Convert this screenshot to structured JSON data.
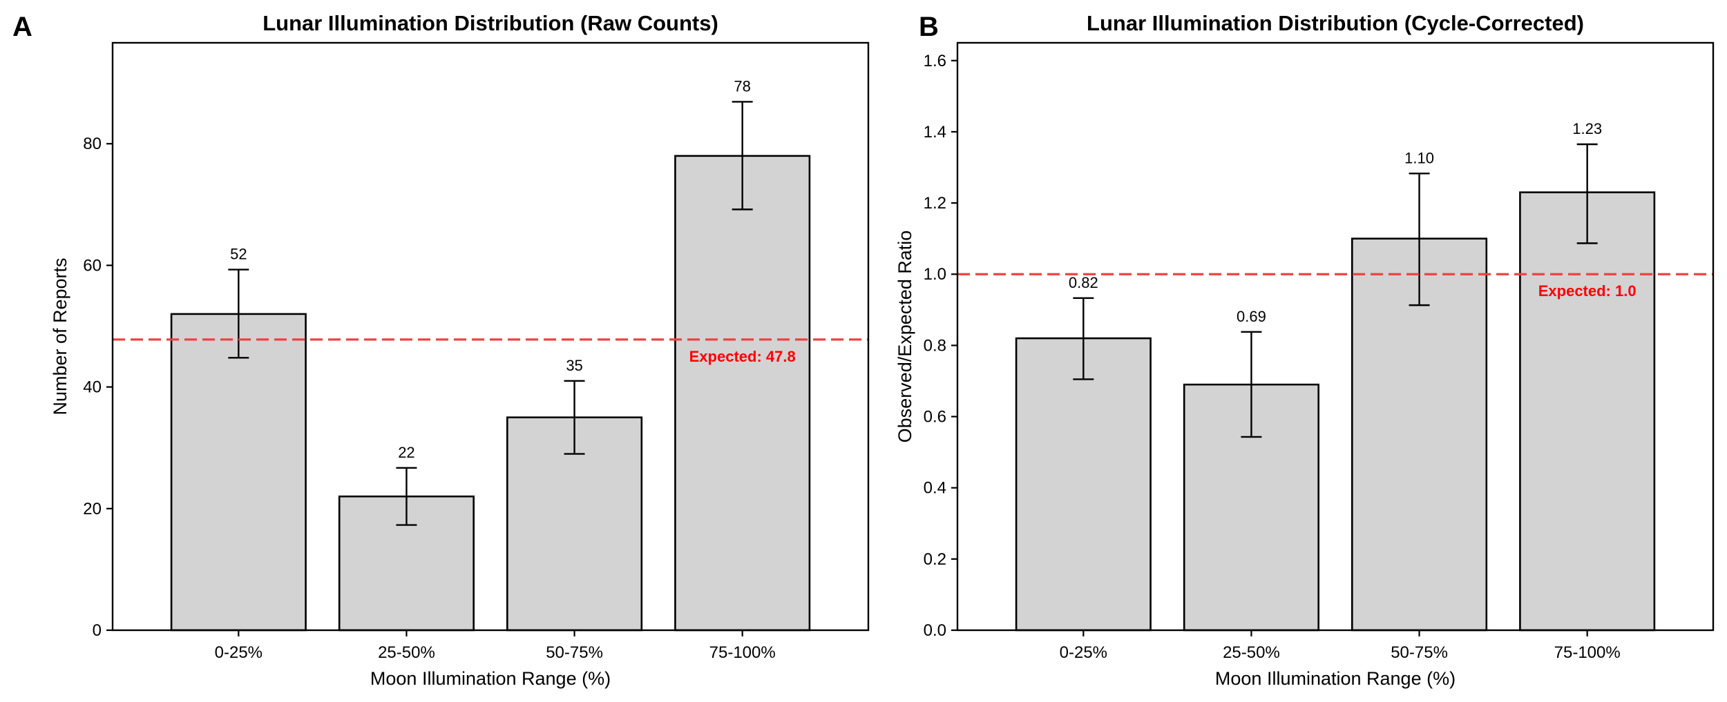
{
  "panels": [
    {
      "letter": "A",
      "colors": {
        "bar_fill": "#d3d3d3",
        "bar_edge": "#000000",
        "expected_line": "#f04040",
        "expected_text": "#ff0000"
      },
      "chart_data": {
        "type": "bar",
        "title": "Lunar Illumination Distribution (Raw Counts)",
        "xlabel": "Moon Illumination Range (%)",
        "ylabel": "Number of Reports",
        "categories": [
          "0-25%",
          "25-50%",
          "50-75%",
          "75-100%"
        ],
        "values": [
          52,
          22,
          35,
          78
        ],
        "value_labels": [
          "52",
          "22",
          "35",
          "78"
        ],
        "error_low": [
          44.8,
          17.3,
          29.0,
          69.2
        ],
        "error_high": [
          59.3,
          26.7,
          41.0,
          86.9
        ],
        "ylim": [
          0,
          96.6
        ],
        "yticks": [
          0,
          20,
          40,
          60,
          80
        ],
        "ytick_labels": [
          "0",
          "20",
          "40",
          "60",
          "80"
        ],
        "expected_value": 47.8,
        "expected_label": "Expected: 47.8",
        "expected_label_position": "right",
        "grid": false,
        "legend": "none"
      }
    },
    {
      "letter": "B",
      "colors": {
        "bar_fill": "#d3d3d3",
        "bar_edge": "#000000",
        "expected_line": "#f04040",
        "expected_text": "#ff0000"
      },
      "chart_data": {
        "type": "bar",
        "title": "Lunar Illumination Distribution (Cycle-Corrected)",
        "xlabel": "Moon Illumination Range (%)",
        "ylabel": "Observed/Expected Ratio",
        "categories": [
          "0-25%",
          "25-50%",
          "50-75%",
          "75-100%"
        ],
        "values": [
          0.82,
          0.69,
          1.1,
          1.23
        ],
        "value_labels": [
          "0.82",
          "0.69",
          "1.10",
          "1.23"
        ],
        "error_low": [
          0.705,
          0.543,
          0.913,
          1.087
        ],
        "error_high": [
          0.933,
          0.838,
          1.283,
          1.365
        ],
        "ylim": [
          0,
          1.65
        ],
        "yticks": [
          0,
          0.2,
          0.4,
          0.6,
          0.8,
          1.0,
          1.2,
          1.4,
          1.6
        ],
        "ytick_labels": [
          "0.0",
          "0.2",
          "0.4",
          "0.6",
          "0.8",
          "1.0",
          "1.2",
          "1.4",
          "1.6"
        ],
        "expected_value": 1.0,
        "expected_label": "Expected: 1.0",
        "expected_label_position": "right",
        "grid": false,
        "legend": "none"
      }
    }
  ]
}
